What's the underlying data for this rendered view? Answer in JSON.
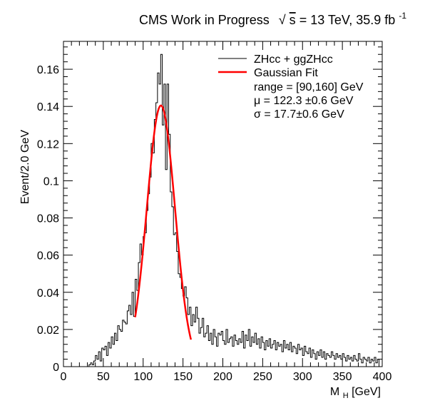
{
  "chart_data": {
    "type": "line",
    "title": {
      "main": "CMS Work in Progress",
      "energy_sqrt": "s",
      "energy_value": " = 13 TeV, 35.9 fb",
      "lumi_exp": "-1"
    },
    "xlabel": {
      "main": "M",
      "sub": "H",
      "unit": " [GeV]"
    },
    "ylabel": "Event/2.0 GeV",
    "xlim": [
      0,
      400
    ],
    "ylim": [
      0,
      0.175
    ],
    "x_ticks": [
      0,
      50,
      100,
      150,
      200,
      250,
      300,
      350,
      400
    ],
    "x_tick_labels": [
      "0",
      "50",
      "100",
      "150",
      "200",
      "250",
      "300",
      "350",
      "400"
    ],
    "y_ticks": [
      0,
      0.02,
      0.04,
      0.06,
      0.08,
      0.1,
      0.12,
      0.14,
      0.16
    ],
    "y_tick_labels": [
      "0",
      "0.02",
      "0.04",
      "0.06",
      "0.08",
      "0.1",
      "0.12",
      "0.14",
      "0.16"
    ],
    "bin_width": 2,
    "series": [
      {
        "name": "ZHcc + ggZHcc",
        "kind": "histogram",
        "color": "#000000",
        "values": [
          0,
          0,
          0,
          0,
          0,
          0,
          0,
          0,
          0,
          0,
          0,
          0,
          0,
          0,
          0,
          0,
          0.001,
          0.002,
          0.001,
          0.003,
          0.006,
          0.004,
          0.008,
          0.003,
          0.01,
          0.009,
          0.011,
          0.006,
          0.013,
          0.01,
          0.016,
          0.012,
          0.018,
          0.014,
          0.022,
          0.02,
          0.019,
          0.025,
          0.024,
          0.023,
          0.03,
          0.033,
          0.028,
          0.04,
          0.027,
          0.047,
          0.041,
          0.056,
          0.066,
          0.06,
          0.07,
          0.072,
          0.084,
          0.093,
          0.102,
          0.12,
          0.115,
          0.133,
          0.142,
          0.158,
          0.152,
          0.168,
          0.13,
          0.152,
          0.106,
          0.152,
          0.125,
          0.094,
          0.086,
          0.071,
          0.072,
          0.062,
          0.05,
          0.048,
          0.042,
          0.038,
          0.043,
          0.037,
          0.028,
          0.032,
          0.022,
          0.028,
          0.024,
          0.032,
          0.026,
          0.018,
          0.021,
          0.026,
          0.016,
          0.018,
          0.022,
          0.014,
          0.018,
          0.012,
          0.02,
          0.016,
          0.011,
          0.018,
          0.017,
          0.019,
          0.014,
          0.012,
          0.02,
          0.013,
          0.015,
          0.016,
          0.011,
          0.017,
          0.014,
          0.012,
          0.015,
          0.013,
          0.019,
          0.01,
          0.017,
          0.014,
          0.02,
          0.011,
          0.016,
          0.013,
          0.018,
          0.012,
          0.015,
          0.01,
          0.016,
          0.013,
          0.009,
          0.014,
          0.011,
          0.015,
          0.01,
          0.012,
          0.014,
          0.009,
          0.013,
          0.011,
          0.012,
          0.008,
          0.014,
          0.01,
          0.012,
          0.009,
          0.013,
          0.008,
          0.011,
          0.01,
          0.007,
          0.012,
          0.009,
          0.01,
          0.006,
          0.011,
          0.008,
          0.007,
          0.01,
          0.005,
          0.009,
          0.007,
          0.004,
          0.008,
          0.006,
          0.009,
          0.005,
          0.008,
          0.004,
          0.007,
          0.006,
          0.005,
          0.008,
          0.006,
          0.004,
          0.007,
          0.005,
          0.006,
          0.004,
          0.007,
          0.005,
          0.003,
          0.006,
          0.004,
          0.005,
          0.003,
          0.006,
          0.004,
          0.003,
          0.007,
          0.004,
          0.002,
          0.005,
          0.004,
          0.003,
          0.005,
          0.002,
          0.004,
          0.003,
          0.005,
          0.002,
          0.004
        ]
      },
      {
        "name": "Gaussian Fit",
        "kind": "fit",
        "color": "#ff0000",
        "function": "gaussian",
        "amplitude": 0.1405,
        "mean": 122.3,
        "sigma": 17.7,
        "range": [
          90,
          160
        ]
      }
    ],
    "legend": {
      "position": "top-right",
      "entries": [
        {
          "label": "ZHcc + ggZHcc",
          "color": "#000000",
          "style": "thin-line"
        },
        {
          "label": "Gaussian Fit",
          "color": "#ff0000",
          "style": "thick-line"
        }
      ],
      "info_lines": [
        "range = [90,160] GeV",
        "μ = 122.3 ±0.6 GeV",
        "σ = 17.7±0.6 GeV"
      ]
    },
    "grid": false
  }
}
